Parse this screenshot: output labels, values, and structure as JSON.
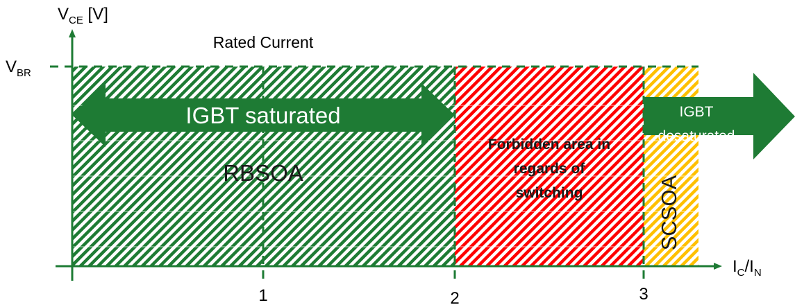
{
  "axes": {
    "y_label_main": "V",
    "y_label_sub": "CE",
    "y_label_unit": " [V]",
    "x_label_main": "I",
    "x_label_sub1": "C",
    "x_label_sep": "/I",
    "x_label_sub2": "N",
    "vbr_main": "V",
    "vbr_sub": "BR",
    "x_ticks": [
      "1",
      "2",
      "3"
    ]
  },
  "labels": {
    "rated_current": "Rated Current",
    "igbt_saturated": "IGBT saturated",
    "rbsoa": "RBSOA",
    "forbidden_line1": "Forbidden area in",
    "forbidden_line2": "regards of",
    "forbidden_line3": "switching",
    "igbt_desat_line1": "IGBT",
    "igbt_desat_line2": "desaturated",
    "scsoa": "SCSOA"
  },
  "colors": {
    "green": "#1e7b34",
    "red": "#ff0000",
    "yellow": "#ffc000",
    "arrow_green": "#1e7b34",
    "axis": "#1e7b34",
    "text": "#000000"
  }
}
